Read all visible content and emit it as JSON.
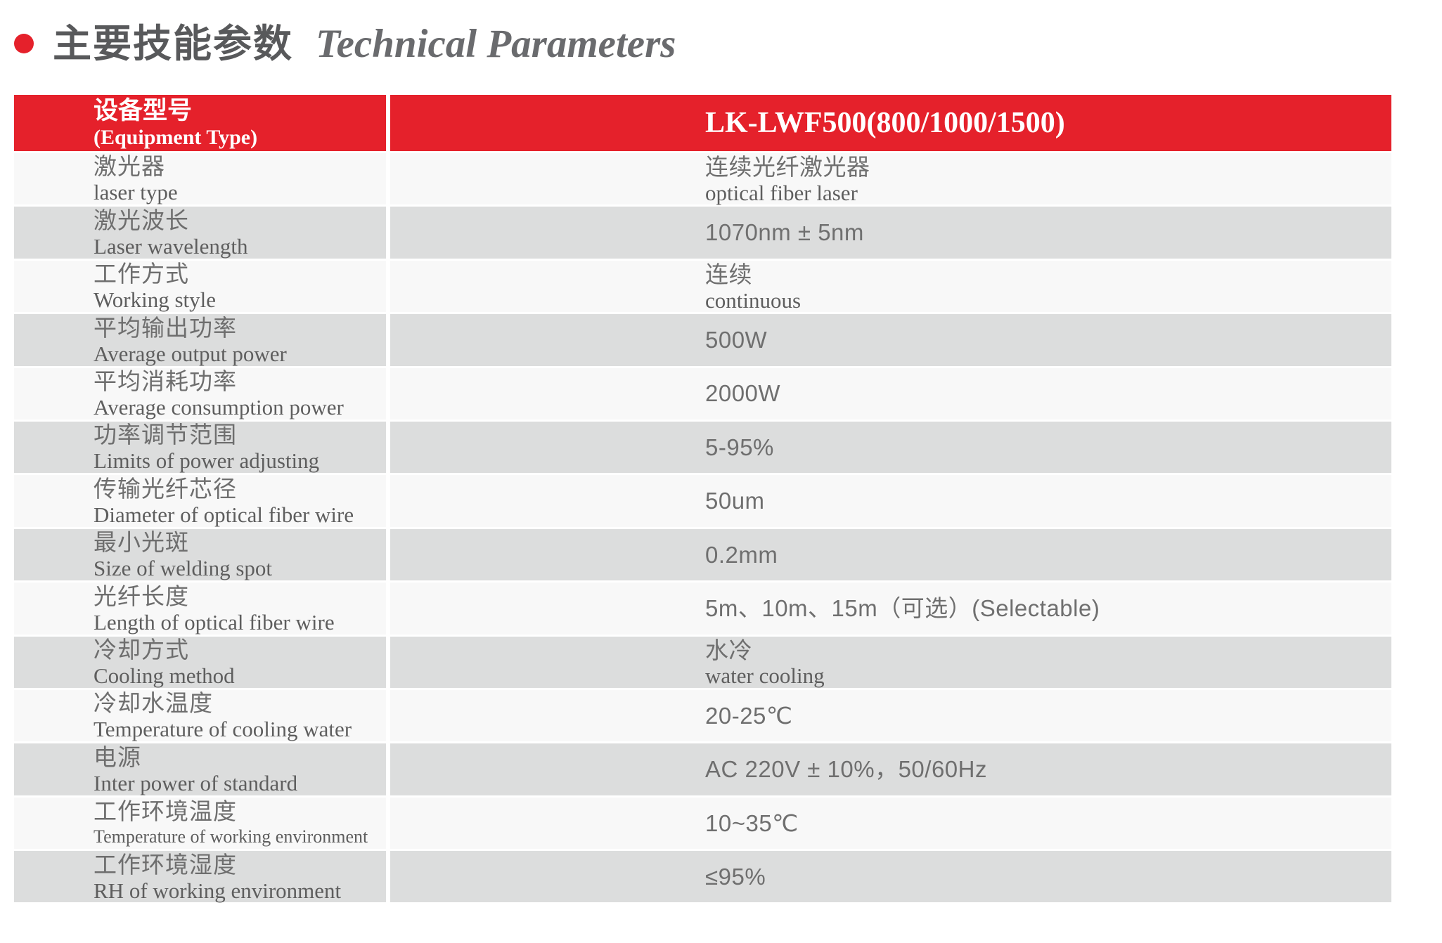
{
  "title": {
    "zh": "主要技能参数",
    "en": "Technical Parameters"
  },
  "colors": {
    "accent_red": "#e5212b",
    "row_light": "#f8f8f8",
    "row_dark": "#dcdddd",
    "header_text": "#ffffff",
    "label_text": "#5e5e5e",
    "value_text": "#6f6f6f",
    "title_text": "#58595b"
  },
  "table": {
    "header": {
      "label_zh": "设备型号",
      "label_en": "(Equipment Type)",
      "value": "LK-LWF500(800/1000/1500)"
    },
    "rows": [
      {
        "label_zh": "激光器",
        "label_en": "laser type",
        "value_line1": "连续光纤激光器",
        "value_line2": "optical fiber laser"
      },
      {
        "label_zh": "激光波长",
        "label_en": "Laser wavelength",
        "value_line1": "1070nm ± 5nm"
      },
      {
        "label_zh": "工作方式",
        "label_en": "Working style",
        "value_line1": "连续",
        "value_line2": "continuous"
      },
      {
        "label_zh": "平均输出功率",
        "label_en": "Average output power",
        "value_line1": "500W"
      },
      {
        "label_zh": "平均消耗功率",
        "label_en": "Average consumption power",
        "value_line1": "2000W"
      },
      {
        "label_zh": "功率调节范围",
        "label_en": "Limits of power adjusting",
        "value_line1": "5-95%"
      },
      {
        "label_zh": "传输光纤芯径",
        "label_en": "Diameter of optical fiber wire",
        "value_line1": "50um"
      },
      {
        "label_zh": "最小光斑",
        "label_en": "Size of welding spot",
        "value_line1": "0.2mm"
      },
      {
        "label_zh": "光纤长度",
        "label_en": "Length of optical fiber wire",
        "value_line1": "5m、10m、15m（可选）(Selectable)"
      },
      {
        "label_zh": "冷却方式",
        "label_en": "Cooling method",
        "value_line1": "水冷",
        "value_line2": "water cooling"
      },
      {
        "label_zh": "冷却水温度",
        "label_en": "Temperature of cooling water",
        "value_line1": "20-25℃"
      },
      {
        "label_zh": "电源",
        "label_en": " Inter power of standard",
        "value_line1": "AC 220V ± 10%，50/60Hz"
      },
      {
        "label_zh": "工作环境温度",
        "label_en": "Temperature of working environment",
        "value_line1": "10~35℃"
      },
      {
        "label_zh": "工作环境湿度",
        "label_en": "RH of working environment",
        "value_line1": "≤95%"
      }
    ]
  }
}
